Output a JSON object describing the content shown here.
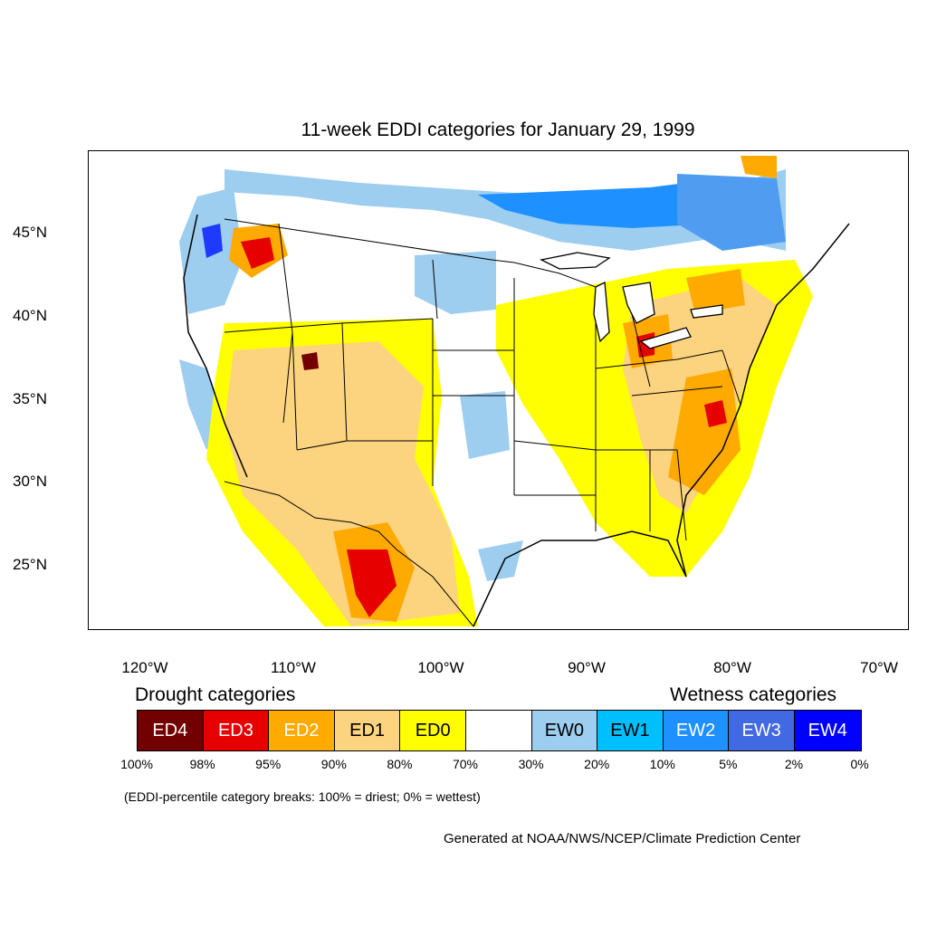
{
  "title": "11-week EDDI categories for January 29, 1999",
  "lat_labels": [
    "45°N",
    "40°N",
    "35°N",
    "30°N",
    "25°N"
  ],
  "lon_labels": [
    "120°W",
    "110°W",
    "100°W",
    "90°W",
    "80°W",
    "70°W"
  ],
  "legend": {
    "drought_heading": "Drought categories",
    "wetness_heading": "Wetness categories",
    "categories": [
      {
        "label": "ED4",
        "color": "#730000",
        "text_color": "#ffffff"
      },
      {
        "label": "ED3",
        "color": "#e60000",
        "text_color": "#ffffff"
      },
      {
        "label": "ED2",
        "color": "#ffaa00",
        "text_color": "#ffffff"
      },
      {
        "label": "ED1",
        "color": "#fcd37f",
        "text_color": "#000000"
      },
      {
        "label": "ED0",
        "color": "#ffff00",
        "text_color": "#000000"
      },
      {
        "label": "",
        "color": "#ffffff",
        "text_color": "#000000"
      },
      {
        "label": "EW0",
        "color": "#9dcdef",
        "text_color": "#000000"
      },
      {
        "label": "EW1",
        "color": "#00bfff",
        "text_color": "#000000"
      },
      {
        "label": "EW2",
        "color": "#1e90ff",
        "text_color": "#ffffff"
      },
      {
        "label": "EW3",
        "color": "#4169e1",
        "text_color": "#ffffff"
      },
      {
        "label": "EW4",
        "color": "#0000ff",
        "text_color": "#ffffff"
      }
    ],
    "breaks": [
      "100%",
      "98%",
      "95%",
      "90%",
      "80%",
      "70%",
      "30%",
      "20%",
      "10%",
      "5%",
      "2%",
      "0%"
    ]
  },
  "note": "(EDDI-percentile category breaks: 100% = driest; 0% = wettest)",
  "credit": "Generated at NOAA/NWS/NCEP/Climate Prediction Center"
}
